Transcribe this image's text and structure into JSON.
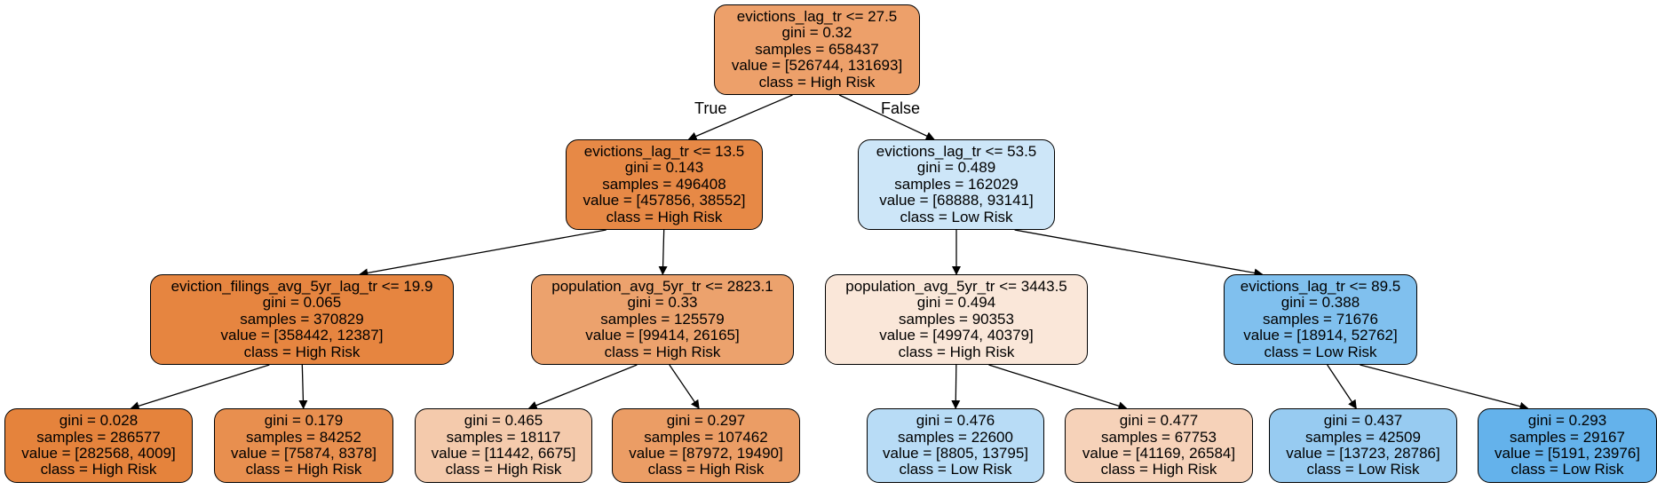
{
  "tree": {
    "nodes": [
      {
        "id": "root",
        "split": "evictions_lag_tr <= 27.5",
        "gini": "gini = 0.32",
        "samples": "samples = 658437",
        "value": "value = [526744, 131693]",
        "class": "class = High Risk",
        "fill": "#eda06a"
      },
      {
        "id": "n1",
        "split": "evictions_lag_tr <= 13.5",
        "gini": "gini = 0.143",
        "samples": "samples = 496408",
        "value": "value = [457856, 38552]",
        "class": "class = High Risk",
        "fill": "#e78946"
      },
      {
        "id": "n2",
        "split": "evictions_lag_tr <= 53.5",
        "gini": "gini = 0.489",
        "samples": "samples = 162029",
        "value": "value = [68888, 93141]",
        "class": "class = Low Risk",
        "fill": "#cde6f8"
      },
      {
        "id": "n3",
        "split": "eviction_filings_avg_5yr_lag_tr <= 19.9",
        "gini": "gini = 0.065",
        "samples": "samples = 370829",
        "value": "value = [358442, 12387]",
        "class": "class = High Risk",
        "fill": "#e68540"
      },
      {
        "id": "n4",
        "split": "population_avg_5yr_tr <= 2823.1",
        "gini": "gini = 0.33",
        "samples": "samples = 125579",
        "value": "value = [99414, 26165]",
        "class": "class = High Risk",
        "fill": "#eca26d"
      },
      {
        "id": "n5",
        "split": "population_avg_5yr_tr <= 3443.5",
        "gini": "gini = 0.494",
        "samples": "samples = 90353",
        "value": "value = [49974, 40379]",
        "class": "class = High Risk",
        "fill": "#fae7d9"
      },
      {
        "id": "n6",
        "split": "evictions_lag_tr <= 89.5",
        "gini": "gini = 0.388",
        "samples": "samples = 71676",
        "value": "value = [18914, 52762]",
        "class": "class = Low Risk",
        "fill": "#80c0ee"
      },
      {
        "id": "n7",
        "split": "",
        "gini": "gini = 0.028",
        "samples": "samples = 286577",
        "value": "value = [282568, 4009]",
        "class": "class = High Risk",
        "fill": "#e5833c"
      },
      {
        "id": "n8",
        "split": "",
        "gini": "gini = 0.179",
        "samples": "samples = 84252",
        "value": "value = [75874, 8378]",
        "class": "class = High Risk",
        "fill": "#e88f4f"
      },
      {
        "id": "n9",
        "split": "",
        "gini": "gini = 0.465",
        "samples": "samples = 18117",
        "value": "value = [11442, 6675]",
        "class": "class = High Risk",
        "fill": "#f4caac"
      },
      {
        "id": "n10",
        "split": "",
        "gini": "gini = 0.297",
        "samples": "samples = 107462",
        "value": "value = [87972, 19490]",
        "class": "class = High Risk",
        "fill": "#eb9d65"
      },
      {
        "id": "n11",
        "split": "",
        "gini": "gini = 0.476",
        "samples": "samples = 22600",
        "value": "value = [8805, 13795]",
        "class": "class = Low Risk",
        "fill": "#b8dcf6"
      },
      {
        "id": "n12",
        "split": "",
        "gini": "gini = 0.477",
        "samples": "samples = 67753",
        "value": "value = [41169, 26584]",
        "class": "class = High Risk",
        "fill": "#f6d2b9"
      },
      {
        "id": "n13",
        "split": "",
        "gini": "gini = 0.437",
        "samples": "samples = 42509",
        "value": "value = [13723, 28786]",
        "class": "class = Low Risk",
        "fill": "#97cbf1"
      },
      {
        "id": "n14",
        "split": "",
        "gini": "gini = 0.293",
        "samples": "samples = 29167",
        "value": "value = [5191, 23976]",
        "class": "class = Low Risk",
        "fill": "#64b2eb"
      }
    ],
    "edges": [
      {
        "from": "root",
        "to": "n1"
      },
      {
        "from": "root",
        "to": "n2"
      },
      {
        "from": "n1",
        "to": "n3"
      },
      {
        "from": "n1",
        "to": "n4"
      },
      {
        "from": "n2",
        "to": "n5"
      },
      {
        "from": "n2",
        "to": "n6"
      },
      {
        "from": "n3",
        "to": "n7"
      },
      {
        "from": "n3",
        "to": "n8"
      },
      {
        "from": "n4",
        "to": "n9"
      },
      {
        "from": "n4",
        "to": "n10"
      },
      {
        "from": "n5",
        "to": "n11"
      },
      {
        "from": "n5",
        "to": "n12"
      },
      {
        "from": "n6",
        "to": "n13"
      },
      {
        "from": "n6",
        "to": "n14"
      }
    ],
    "edge_labels": {
      "true_label": "True",
      "false_label": "False"
    }
  }
}
